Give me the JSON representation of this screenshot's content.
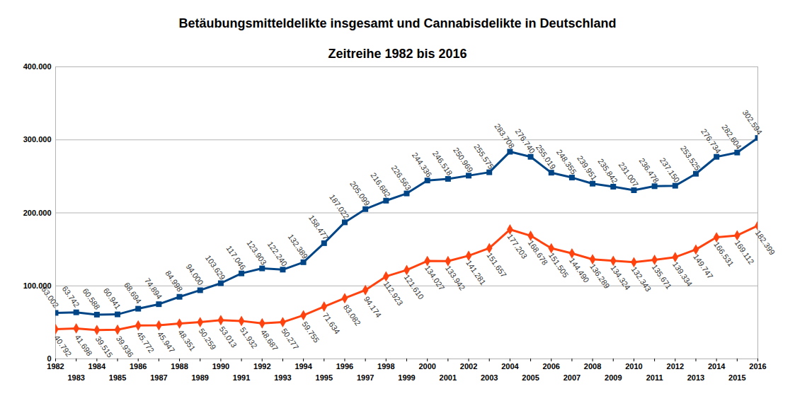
{
  "chart_data": {
    "type": "line",
    "title": "Betäubungsmitteldelikte insgesamt und Cannabisdelikte in Deutschland",
    "subtitle": "Zeitreihe 1982 bis 2016",
    "x": [
      1982,
      1983,
      1984,
      1985,
      1986,
      1987,
      1988,
      1989,
      1990,
      1991,
      1992,
      1993,
      1994,
      1995,
      1996,
      1997,
      1998,
      1999,
      2000,
      2001,
      2002,
      2003,
      2004,
      2005,
      2006,
      2007,
      2008,
      2009,
      2010,
      2011,
      2012,
      2013,
      2014,
      2015,
      2016
    ],
    "xlim": [
      1982,
      2016
    ],
    "xticks": [
      1982,
      1983,
      1984,
      1985,
      1986,
      1987,
      1988,
      1989,
      1990,
      1991,
      1992,
      1993,
      1994,
      1995,
      1996,
      1997,
      1998,
      1999,
      2000,
      2001,
      2002,
      2003,
      2004,
      2005,
      2006,
      2007,
      2008,
      2009,
      2010,
      2011,
      2012,
      2013,
      2014,
      2015,
      2016
    ],
    "ylim": [
      0,
      400000
    ],
    "yticks": [
      0,
      {
        "value": 100000,
        "label": "100.000"
      },
      {
        "value": 200000,
        "label": "200.000"
      },
      {
        "value": 300000,
        "label": "300.000"
      },
      {
        "value": 400000,
        "label": "400.000"
      }
    ],
    "grid": true,
    "data_labels": true,
    "series": [
      {
        "color": "#004586",
        "marker": "square",
        "values": [
          63002,
          63742,
          60588,
          60941,
          68694,
          74894,
          84998,
          94000,
          103629,
          117046,
          123903,
          122240,
          132389,
          158477,
          187022,
          205099,
          216682,
          226563,
          244336,
          246518,
          250969,
          255575,
          283708,
          276740,
          255019,
          248355,
          239951,
          235842,
          231007,
          236478,
          237150,
          253525,
          276734,
          282604,
          302594
        ],
        "value_labels": [
          "63.002",
          "63.742",
          "60.588",
          "60.941",
          "68.694",
          "74.894",
          "84.998",
          "94.000",
          "103.629",
          "117.046",
          "123.903",
          "122.240",
          "132.389",
          "158.477",
          "187.022",
          "205.099",
          "216.682",
          "226.563",
          "244.336",
          "246.518",
          "250.969",
          "255.575",
          "283.708",
          "276.740",
          "255.019",
          "248.355",
          "239.951",
          "235.842",
          "231.007",
          "236.478",
          "237.150",
          "253.525",
          "276.734",
          "282.604",
          "302.594"
        ]
      },
      {
        "color": "#ff420e",
        "marker": "diamond",
        "values": [
          40792,
          41698,
          39515,
          39936,
          45772,
          45947,
          48351,
          50259,
          53013,
          51932,
          48687,
          50277,
          59755,
          71634,
          83082,
          94174,
          112923,
          121610,
          134027,
          133942,
          141281,
          151657,
          177203,
          168678,
          151505,
          144490,
          136289,
          134324,
          132343,
          135671,
          139334,
          149747,
          166531,
          169112,
          182399
        ],
        "value_labels": [
          "40.792",
          "41.698",
          "39.515",
          "39.936",
          "45.772",
          "45.947",
          "48.351",
          "50.259",
          "53.013",
          "51.932",
          "48.687",
          "50.277",
          "59.755",
          "71.634",
          "83.082",
          "94.174",
          "112.923",
          "121.610",
          "134.027",
          "133.942",
          "141.281",
          "151.657",
          "177.203",
          "168.678",
          "151.505",
          "144.490",
          "136.289",
          "134.324",
          "132.343",
          "135.671",
          "139.334",
          "149.747",
          "166.531",
          "169.112",
          "182.399"
        ]
      }
    ]
  }
}
